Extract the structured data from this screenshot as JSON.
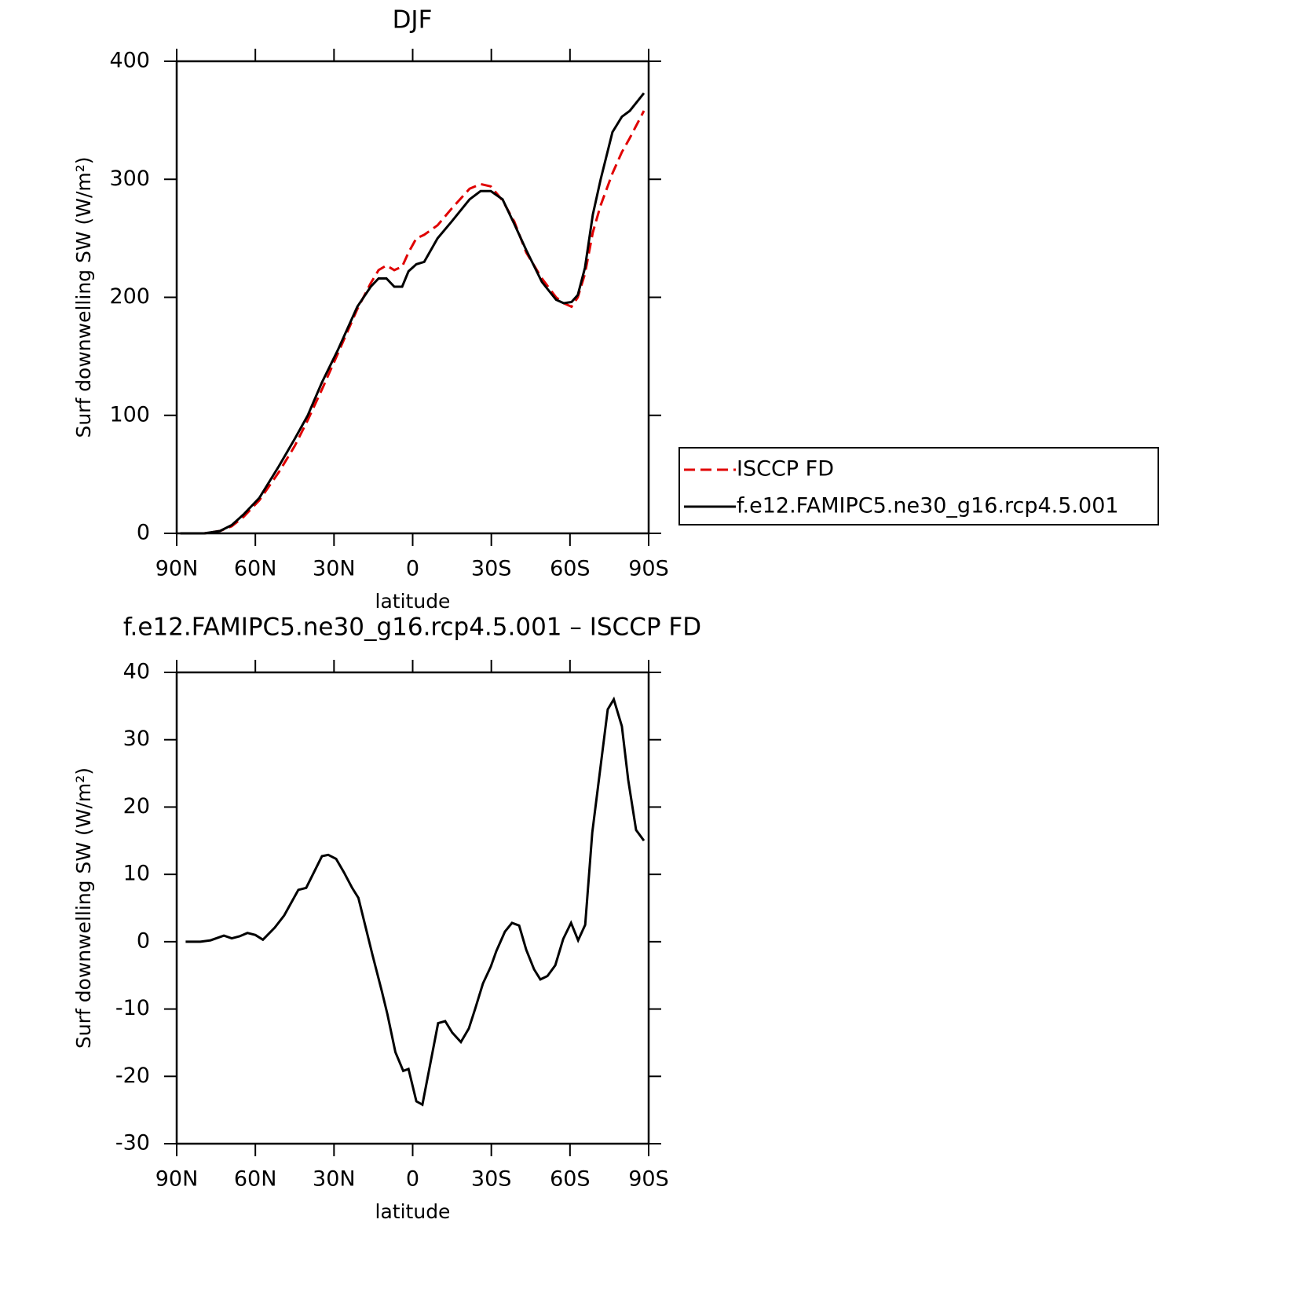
{
  "chart_data": [
    {
      "type": "line",
      "title": "DJF",
      "x_label": "latitude",
      "y_label": "Surf downwelling SW (W/m²)",
      "x": [
        88.6,
        79.5,
        73.5,
        69.0,
        64.5,
        58.5,
        51.0,
        45.0,
        40.0,
        34.6,
        28.6,
        21.1,
        16.0,
        13.0,
        10.0,
        7.0,
        4.0,
        1.6,
        -1.4,
        -4.4,
        -9.5,
        -14.8,
        -21.7,
        -25.9,
        -29.8,
        -34.3,
        -38.8,
        -43.3,
        -49.3,
        -54.7,
        -57.6,
        -60.6,
        -63.0,
        -65.7,
        -68.7,
        -71.7,
        -76.2,
        -79.8,
        -82.8,
        -88.2
      ],
      "series": [
        {
          "name": "ISCCP FD",
          "color": "#e00000",
          "dash": "dashed",
          "values": [
            0,
            0,
            2,
            6,
            14,
            28,
            52,
            74,
            96,
            122,
            152,
            190,
            212,
            223,
            227,
            223,
            226,
            238,
            250,
            253,
            261,
            275,
            292,
            296,
            294,
            282,
            264,
            238,
            216,
            200,
            195,
            192,
            200,
            220,
            255,
            278,
            305,
            323,
            335,
            358
          ]
        },
        {
          "name": "f.e12.FAMIPC5.ne30_g16.rcp4.5.001",
          "color": "#000000",
          "dash": "solid",
          "values": [
            0,
            0,
            2,
            7,
            16,
            30,
            57,
            80,
            100,
            128,
            155,
            192,
            209,
            216,
            216,
            209,
            209,
            222,
            228,
            230,
            250,
            264,
            283,
            290,
            290,
            283,
            262,
            240,
            213,
            198,
            195,
            196,
            202,
            225,
            270,
            300,
            340,
            353,
            358,
            373
          ]
        }
      ],
      "xlim": [
        90,
        -90
      ],
      "xticks": [
        {
          "value": 90,
          "label": "90N"
        },
        {
          "value": 60,
          "label": "60N"
        },
        {
          "value": 30,
          "label": "30N"
        },
        0,
        {
          "value": -30,
          "label": "30S"
        },
        {
          "value": -60,
          "label": "60S"
        },
        {
          "value": -90,
          "label": "90S"
        }
      ],
      "ylim": [
        0,
        400
      ],
      "yticks": [
        0,
        100,
        200,
        300,
        400
      ],
      "legend": "right"
    },
    {
      "type": "line",
      "title": "f.e12.FAMIPC5.ne30_g16.rcp4.5.001 – ISCCP FD",
      "x_label": "latitude",
      "y_label": "Surf downwelling SW (W/m²)",
      "x": [
        86.6,
        81.0,
        77.1,
        72.0,
        69.0,
        66.0,
        63.0,
        60.0,
        57.1,
        52.6,
        49.0,
        43.6,
        40.6,
        34.6,
        32.2,
        29.2,
        26.2,
        23.1,
        20.7,
        15.3,
        11.8,
        9.6,
        6.6,
        3.6,
        1.6,
        -1.4,
        -3.7,
        -9.7,
        -12.4,
        -15.1,
        -18.4,
        -21.4,
        -23.8,
        -26.8,
        -29.8,
        -31.9,
        -35.2,
        -37.9,
        -40.6,
        -43.3,
        -46.3,
        -48.7,
        -51.4,
        -54.4,
        -57.4,
        -60.4,
        -63.1,
        -65.8,
        -68.5,
        -74.4,
        -76.7,
        -79.8,
        -82.2,
        -85.2,
        -88.2
      ],
      "series": [
        {
          "color": "#000000",
          "dash": "solid",
          "values": [
            0,
            0,
            0.2,
            0.9,
            0.5,
            0.8,
            1.3,
            1.0,
            0.3,
            2.1,
            3.9,
            7.7,
            8.0,
            12.7,
            12.9,
            12.3,
            10.3,
            8.0,
            6.5,
            -2,
            -7.3,
            -10.8,
            -16.4,
            -19.2,
            -18.9,
            -23.7,
            -24.2,
            -12.1,
            -11.8,
            -13.5,
            -14.9,
            -12.9,
            -10.0,
            -6.2,
            -3.7,
            -1.4,
            1.5,
            2.8,
            2.4,
            -1.2,
            -4.1,
            -5.6,
            -5.1,
            -3.5,
            0.4,
            2.8,
            0.2,
            2.5,
            16.2,
            34.5,
            36,
            32,
            24,
            16.6,
            15
          ]
        }
      ],
      "xlim": [
        90,
        -90
      ],
      "xticks": [
        {
          "value": 90,
          "label": "90N"
        },
        {
          "value": 60,
          "label": "60N"
        },
        {
          "value": 30,
          "label": "30N"
        },
        0,
        {
          "value": -30,
          "label": "30S"
        },
        {
          "value": -60,
          "label": "60S"
        },
        {
          "value": -90,
          "label": "90S"
        }
      ],
      "ylim": [
        -30,
        40
      ],
      "yticks": [
        -30,
        -20,
        -10,
        0,
        10,
        20,
        30,
        40
      ]
    }
  ]
}
